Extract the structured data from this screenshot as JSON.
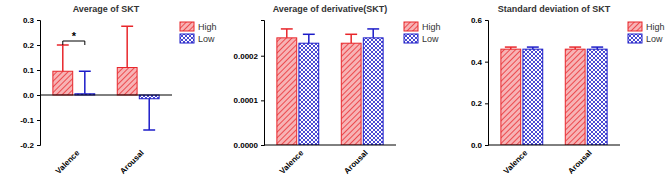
{
  "chart_data": [
    {
      "type": "bar",
      "title": "Average of SKT",
      "categories": [
        "Valence",
        "Arousal"
      ],
      "series": [
        {
          "name": "High",
          "color": "#e8262b",
          "values": [
            0.095,
            0.11
          ],
          "errors": [
            0.105,
            0.165
          ]
        },
        {
          "name": "Low",
          "color": "#1c1cc8",
          "values": [
            0.005,
            -0.015
          ],
          "errors": [
            0.09,
            0.125
          ]
        }
      ],
      "ylim": [
        -0.2,
        0.3
      ],
      "yticks": [
        -0.2,
        -0.1,
        {
          "value": 0,
          "label": "0.0"
        },
        0.1,
        0.2,
        0.3
      ],
      "legend": "top-right",
      "annotations": [
        {
          "text": "*",
          "category": "Valence"
        }
      ]
    },
    {
      "type": "bar",
      "title": "Average of derivative(SKT)",
      "categories": [
        "Valence",
        "Arousal"
      ],
      "series": [
        {
          "name": "High",
          "color": "#e8262b",
          "values": [
            0.00024,
            0.000228
          ],
          "errors": [
            2e-05,
            2e-05
          ]
        },
        {
          "name": "Low",
          "color": "#1c1cc8",
          "values": [
            0.000228,
            0.00024
          ],
          "errors": [
            2e-05,
            2e-05
          ]
        }
      ],
      "ylim": [
        0,
        0.00028
      ],
      "yticks": [
        {
          "value": 0,
          "label": "0.0000"
        },
        {
          "value": 0.0001,
          "label": "0.0001"
        },
        {
          "value": 0.0002,
          "label": "0.0002"
        }
      ],
      "legend": "top-right"
    },
    {
      "type": "bar",
      "title": "Standard deviation of SKT",
      "categories": [
        "Valence",
        "Arousal"
      ],
      "series": [
        {
          "name": "High",
          "color": "#e8262b",
          "values": [
            0.46,
            0.46
          ],
          "errors": [
            0.01,
            0.01
          ]
        },
        {
          "name": "Low",
          "color": "#1c1cc8",
          "values": [
            0.46,
            0.46
          ],
          "errors": [
            0.01,
            0.01
          ]
        }
      ],
      "ylim": [
        0,
        0.6
      ],
      "yticks": [
        {
          "value": 0,
          "label": "0.0"
        },
        0.2,
        0.4,
        0.6
      ],
      "legend": "top-right"
    }
  ]
}
